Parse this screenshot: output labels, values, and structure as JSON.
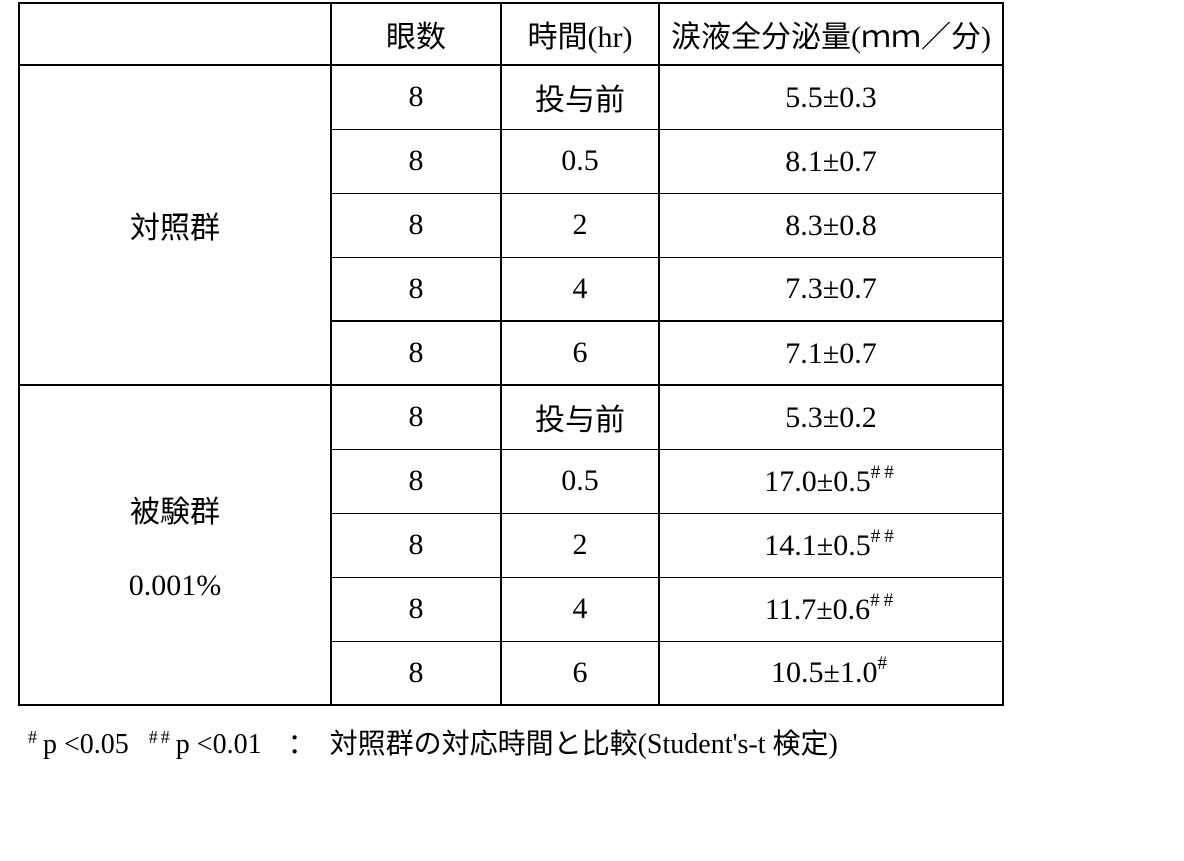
{
  "page": {
    "background": "#ffffff",
    "text_color": "#000000",
    "border_color": "#000000"
  },
  "table": {
    "headers": {
      "group": "",
      "eyes": "眼数",
      "time": "時間(hr)",
      "secretion": "涙液全分泌量(ｍｍ／分)"
    },
    "groups": [
      {
        "label": "対照群",
        "concentration": "",
        "rows": [
          {
            "eyes": "8",
            "time": "投与前",
            "value": "5.5±0.3",
            "sup": ""
          },
          {
            "eyes": "8",
            "time": "0.5",
            "value": "8.1±0.7",
            "sup": ""
          },
          {
            "eyes": "8",
            "time": "2",
            "value": "8.3±0.8",
            "sup": ""
          },
          {
            "eyes": "8",
            "time": "4",
            "value": "7.3±0.7",
            "sup": ""
          },
          {
            "eyes": "8",
            "time": "6",
            "value": "7.1±0.7",
            "sup": ""
          }
        ]
      },
      {
        "label": "被験群",
        "concentration": "0.001%",
        "rows": [
          {
            "eyes": "8",
            "time": "投与前",
            "value": "5.3±0.2",
            "sup": ""
          },
          {
            "eyes": "8",
            "time": "0.5",
            "value": "17.0±0.5",
            "sup": "##"
          },
          {
            "eyes": "8",
            "time": "2",
            "value": "14.1±0.5",
            "sup": "##"
          },
          {
            "eyes": "8",
            "time": "4",
            "value": "11.7±0.6",
            "sup": "##"
          },
          {
            "eyes": "8",
            "time": "6",
            "value": "10.5±1.0",
            "sup": "#"
          }
        ]
      }
    ]
  },
  "footnote": {
    "sig1_mark": "#",
    "sig1_text": "p <0.05",
    "sig2_mark": "##",
    "sig2_text": "p <0.01",
    "colon": "：",
    "description": "対照群の対応時間と比較(Student's-t 検定)"
  }
}
